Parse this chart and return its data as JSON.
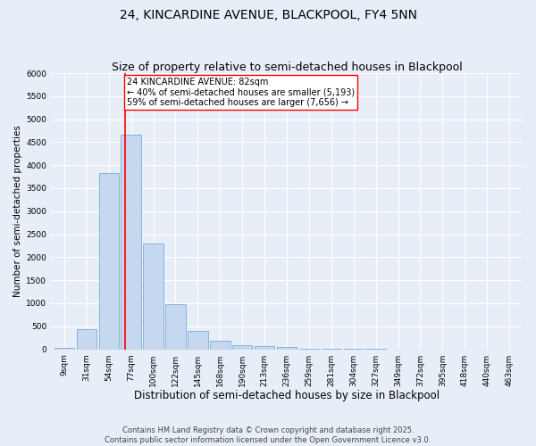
{
  "title": "24, KINCARDINE AVENUE, BLACKPOOL, FY4 5NN",
  "subtitle": "Size of property relative to semi-detached houses in Blackpool",
  "xlabel": "Distribution of semi-detached houses by size in Blackpool",
  "ylabel": "Number of semi-detached properties",
  "bin_labels": [
    "9sqm",
    "31sqm",
    "54sqm",
    "77sqm",
    "100sqm",
    "122sqm",
    "145sqm",
    "168sqm",
    "190sqm",
    "213sqm",
    "236sqm",
    "259sqm",
    "281sqm",
    "304sqm",
    "327sqm",
    "349sqm",
    "372sqm",
    "395sqm",
    "418sqm",
    "440sqm",
    "463sqm"
  ],
  "bar_heights": [
    40,
    430,
    3820,
    4670,
    2300,
    990,
    400,
    195,
    85,
    65,
    55,
    20,
    5,
    3,
    2,
    1,
    1,
    0,
    0,
    0,
    0
  ],
  "bar_color": "#c5d8f0",
  "bar_edge_color": "#7aadd4",
  "vline_color": "red",
  "annotation_text": "24 KINCARDINE AVENUE: 82sqm\n← 40% of semi-detached houses are smaller (5,193)\n59% of semi-detached houses are larger (7,656) →",
  "annotation_box_facecolor": "white",
  "annotation_box_edgecolor": "red",
  "ylim": [
    0,
    6000
  ],
  "yticks": [
    0,
    500,
    1000,
    1500,
    2000,
    2500,
    3000,
    3500,
    4000,
    4500,
    5000,
    5500,
    6000
  ],
  "bg_color": "#e8eef8",
  "plot_bg_color": "#e8eef8",
  "grid_color": "#ffffff",
  "footer_line1": "Contains HM Land Registry data © Crown copyright and database right 2025.",
  "footer_line2": "Contains public sector information licensed under the Open Government Licence v3.0.",
  "title_fontsize": 10,
  "subtitle_fontsize": 9,
  "xlabel_fontsize": 8.5,
  "ylabel_fontsize": 7.5,
  "tick_fontsize": 6.5,
  "annotation_fontsize": 7,
  "footer_fontsize": 6
}
